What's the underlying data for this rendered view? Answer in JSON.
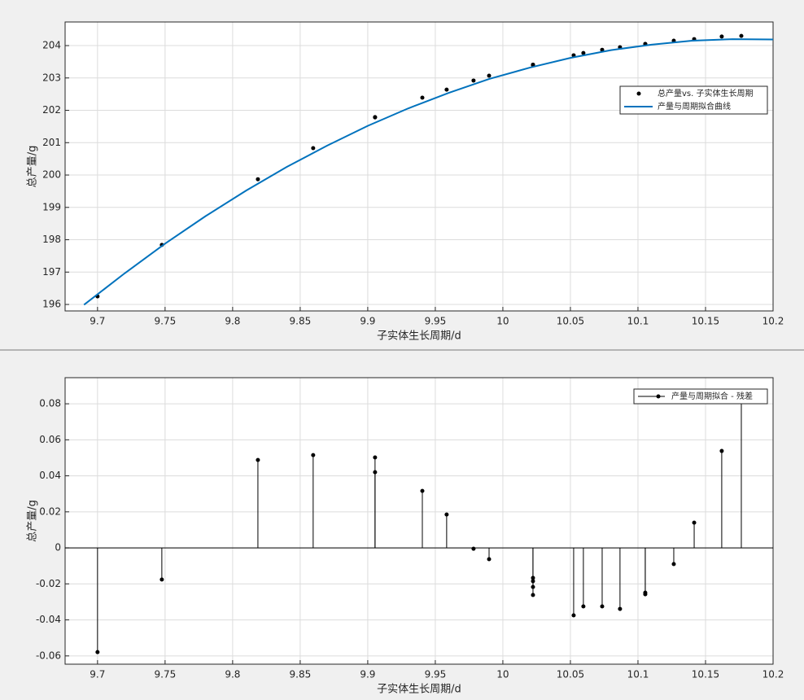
{
  "chart_data": [
    {
      "type": "line",
      "xlabel": "子实体生长周期/d",
      "ylabel": "总产量/g",
      "xlim": [
        9.676,
        10.2
      ],
      "ylim": [
        195.8,
        204.73
      ],
      "xticks": [
        9.7,
        9.75,
        9.8,
        9.85,
        9.9,
        9.95,
        10,
        10.05,
        10.1,
        10.15,
        10.2
      ],
      "yticks": [
        196,
        197,
        198,
        199,
        200,
        201,
        202,
        203,
        204
      ],
      "grid": true,
      "legend": "upper right",
      "series": [
        {
          "name": "总产量vs. 子实体生长周期",
          "color": "#000000",
          "style": "markers",
          "x": [
            9.7,
            9.7476,
            9.8187,
            9.8596,
            9.9054,
            9.9054,
            9.9404,
            9.9584,
            9.9783,
            9.9898,
            10.0223,
            10.0223,
            10.0223,
            10.0223,
            10.0524,
            10.0596,
            10.0735,
            10.0867,
            10.1054,
            10.1054,
            10.1265,
            10.1416,
            10.162,
            10.1765
          ],
          "values": [
            196.25,
            197.84,
            199.87,
            200.83,
            201.79,
            201.78,
            202.39,
            202.64,
            202.92,
            203.07,
            203.41,
            203.41,
            203.4,
            203.4,
            203.7,
            203.77,
            203.87,
            203.95,
            204.05,
            204.05,
            204.15,
            204.2,
            204.28,
            204.3
          ]
        },
        {
          "name": "产量与周期拟合曲线",
          "color": "#0072bd",
          "style": "line",
          "x": [
            9.69,
            9.72,
            9.75,
            9.78,
            9.81,
            9.84,
            9.87,
            9.9,
            9.93,
            9.96,
            9.99,
            10.02,
            10.05,
            10.08,
            10.11,
            10.14,
            10.17,
            10.2
          ],
          "values": [
            195.99,
            196.96,
            197.88,
            198.73,
            199.52,
            200.25,
            200.91,
            201.52,
            202.06,
            202.54,
            202.97,
            203.32,
            203.62,
            203.86,
            204.03,
            204.15,
            204.2,
            204.19
          ]
        }
      ]
    },
    {
      "type": "stem",
      "xlabel": "子实体生长周期/d",
      "ylabel": "总产量/g",
      "xlim": [
        9.676,
        10.2
      ],
      "ylim": [
        -0.0646,
        0.0945
      ],
      "xticks": [
        9.7,
        9.75,
        9.8,
        9.85,
        9.9,
        9.95,
        10,
        10.05,
        10.1,
        10.15,
        10.2
      ],
      "yticks": [
        -0.06,
        -0.04,
        -0.02,
        0,
        0.02,
        0.04,
        0.06,
        0.08
      ],
      "grid": true,
      "legend": "upper right",
      "series": [
        {
          "name": "产量与周期拟合 - 残差",
          "color": "#000000",
          "x": [
            9.7,
            9.7476,
            9.8187,
            9.8596,
            9.9054,
            9.9054,
            9.9404,
            9.9584,
            9.9783,
            9.9898,
            10.0223,
            10.0223,
            10.0223,
            10.0223,
            10.0524,
            10.0596,
            10.0735,
            10.0867,
            10.1054,
            10.1054,
            10.1265,
            10.1416,
            10.162,
            10.1765
          ],
          "values": [
            -0.0579,
            -0.0176,
            0.0488,
            0.0515,
            0.0502,
            0.042,
            0.0316,
            0.0185,
            -0.0005,
            -0.0063,
            -0.0167,
            -0.0185,
            -0.0217,
            -0.0262,
            -0.0375,
            -0.0325,
            -0.0325,
            -0.0339,
            -0.0249,
            -0.0258,
            -0.009,
            0.014,
            0.0538,
            0.0868
          ]
        }
      ]
    }
  ]
}
